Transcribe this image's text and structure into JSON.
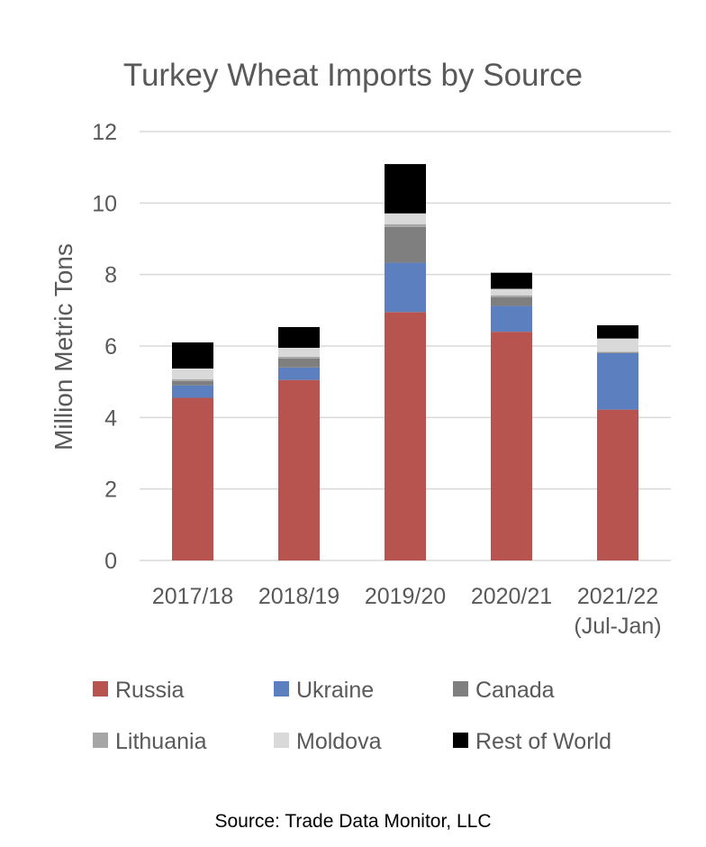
{
  "chart_data": {
    "type": "bar",
    "stacked": true,
    "title": "Turkey Wheat Imports by Source",
    "ylabel": "Million Metric Tons",
    "xlabel": "",
    "ylim": [
      0,
      12
    ],
    "yticks": [
      0,
      2,
      4,
      6,
      8,
      10,
      12
    ],
    "grid": true,
    "legend_position": "bottom",
    "categories": [
      [
        "2017/18"
      ],
      [
        "2018/19"
      ],
      [
        "2019/20"
      ],
      [
        "2020/21"
      ],
      [
        "2021/22",
        "(Jul-Jan)"
      ]
    ],
    "series": [
      {
        "name": "Russia",
        "color": "#b85450",
        "values": [
          4.55,
          5.05,
          6.95,
          6.4,
          4.22
        ]
      },
      {
        "name": "Ukraine",
        "color": "#5b7fbf",
        "values": [
          0.35,
          0.35,
          1.38,
          0.72,
          1.58
        ]
      },
      {
        "name": "Canada",
        "color": "#7f7f7f",
        "values": [
          0.12,
          0.25,
          1.0,
          0.25,
          0.02
        ]
      },
      {
        "name": "Lithuania",
        "color": "#a6a6a6",
        "values": [
          0.05,
          0.05,
          0.08,
          0.05,
          0.02
        ]
      },
      {
        "name": "Moldova",
        "color": "#d9d9d9",
        "values": [
          0.3,
          0.25,
          0.3,
          0.18,
          0.37
        ]
      },
      {
        "name": "Rest of World",
        "color": "#000000",
        "values": [
          0.73,
          0.58,
          1.38,
          0.45,
          0.37
        ]
      }
    ]
  },
  "source": "Source: Trade Data Monitor, LLC"
}
